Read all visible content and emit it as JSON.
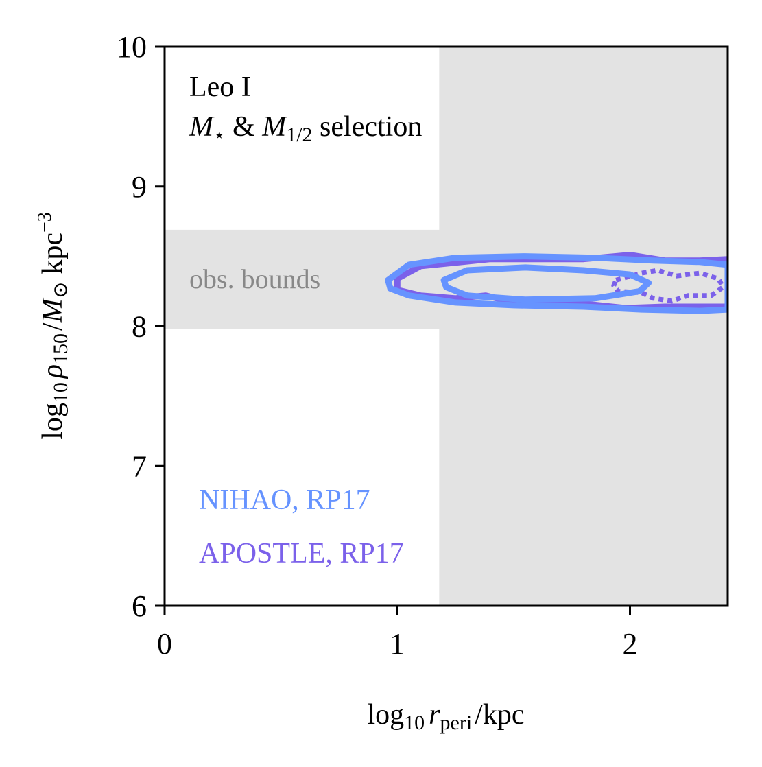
{
  "chart_data": {
    "type": "contour",
    "title": "",
    "xlabel": {
      "prefix": "log",
      "sub1": "10",
      "var": "r",
      "sub2": "peri",
      "unit": "/kpc"
    },
    "ylabel": {
      "prefix": "log",
      "sub1": "10",
      "var": "ρ",
      "sub2": "150",
      "mid": "/",
      "mvar": "M",
      "msub": "⊙",
      "unit": " kpc",
      "sup": "−3"
    },
    "xlim": [
      0,
      2.42
    ],
    "ylim": [
      6,
      10
    ],
    "x_ticks": [
      0,
      1,
      2
    ],
    "x_tick_labels": [
      "0",
      "1",
      "2"
    ],
    "y_ticks": [
      6,
      7,
      8,
      9,
      10
    ],
    "y_tick_labels": [
      "6",
      "7",
      "8",
      "9",
      "10"
    ],
    "grid": false,
    "annotation": {
      "line1": "Leo I",
      "line2_var": "M",
      "line2_sub1": "⋆",
      "line2_amp": " & ",
      "line2_var2": "M",
      "line2_sub2": "1/2",
      "line2_tail": " selection"
    },
    "observed_bounds": {
      "label": "obs. bounds",
      "color": "#e3e3e3",
      "rho_band": [
        7.98,
        8.69
      ],
      "rperi_min": 1.18
    },
    "series": [
      {
        "name": "NIHAO, RP17",
        "color": "#6693ff",
        "contours": [
          {
            "level": "outer",
            "style": "solid",
            "points": [
              [
                0.96,
                8.33
              ],
              [
                1.05,
                8.44
              ],
              [
                1.25,
                8.49
              ],
              [
                1.55,
                8.5
              ],
              [
                1.85,
                8.49
              ],
              [
                2.1,
                8.47
              ],
              [
                2.3,
                8.46
              ],
              [
                2.42,
                8.44
              ],
              [
                2.42,
                8.12
              ],
              [
                2.3,
                8.11
              ],
              [
                2.05,
                8.12
              ],
              [
                1.8,
                8.14
              ],
              [
                1.5,
                8.15
              ],
              [
                1.25,
                8.17
              ],
              [
                1.05,
                8.22
              ],
              [
                0.97,
                8.27
              ]
            ]
          },
          {
            "level": "inner",
            "style": "solid",
            "points": [
              [
                1.2,
                8.33
              ],
              [
                1.3,
                8.4
              ],
              [
                1.55,
                8.42
              ],
              [
                1.8,
                8.4
              ],
              [
                2.0,
                8.37
              ],
              [
                2.08,
                8.31
              ],
              [
                2.04,
                8.25
              ],
              [
                1.85,
                8.2
              ],
              [
                1.55,
                8.19
              ],
              [
                1.3,
                8.22
              ],
              [
                1.21,
                8.28
              ]
            ]
          }
        ]
      },
      {
        "name": "APOSTLE, RP17",
        "color": "#7b61ea",
        "contours": [
          {
            "level": "outer",
            "style": "solid",
            "points": [
              [
                1.0,
                8.34
              ],
              [
                1.1,
                8.43
              ],
              [
                1.4,
                8.48
              ],
              [
                1.8,
                8.48
              ],
              [
                2.0,
                8.51
              ],
              [
                2.15,
                8.47
              ],
              [
                2.3,
                8.47
              ],
              [
                2.42,
                8.48
              ],
              [
                2.42,
                8.14
              ],
              [
                2.3,
                8.14
              ],
              [
                2.15,
                8.14
              ],
              [
                1.98,
                8.13
              ],
              [
                1.75,
                8.17
              ],
              [
                1.5,
                8.17
              ],
              [
                1.38,
                8.22
              ],
              [
                1.25,
                8.2
              ],
              [
                1.1,
                8.22
              ],
              [
                1.0,
                8.26
              ]
            ]
          },
          {
            "level": "inner",
            "style": "dotted",
            "points": [
              [
                1.94,
                8.33
              ],
              [
                2.05,
                8.38
              ],
              [
                2.12,
                8.4
              ],
              [
                2.2,
                8.36
              ],
              [
                2.3,
                8.38
              ],
              [
                2.38,
                8.34
              ],
              [
                2.4,
                8.28
              ],
              [
                2.35,
                8.22
              ],
              [
                2.25,
                8.22
              ],
              [
                2.18,
                8.18
              ],
              [
                2.1,
                8.2
              ],
              [
                2.05,
                8.24
              ],
              [
                1.95,
                8.25
              ],
              [
                1.93,
                8.29
              ]
            ]
          }
        ]
      }
    ],
    "legend_placement": "bottom-left"
  }
}
